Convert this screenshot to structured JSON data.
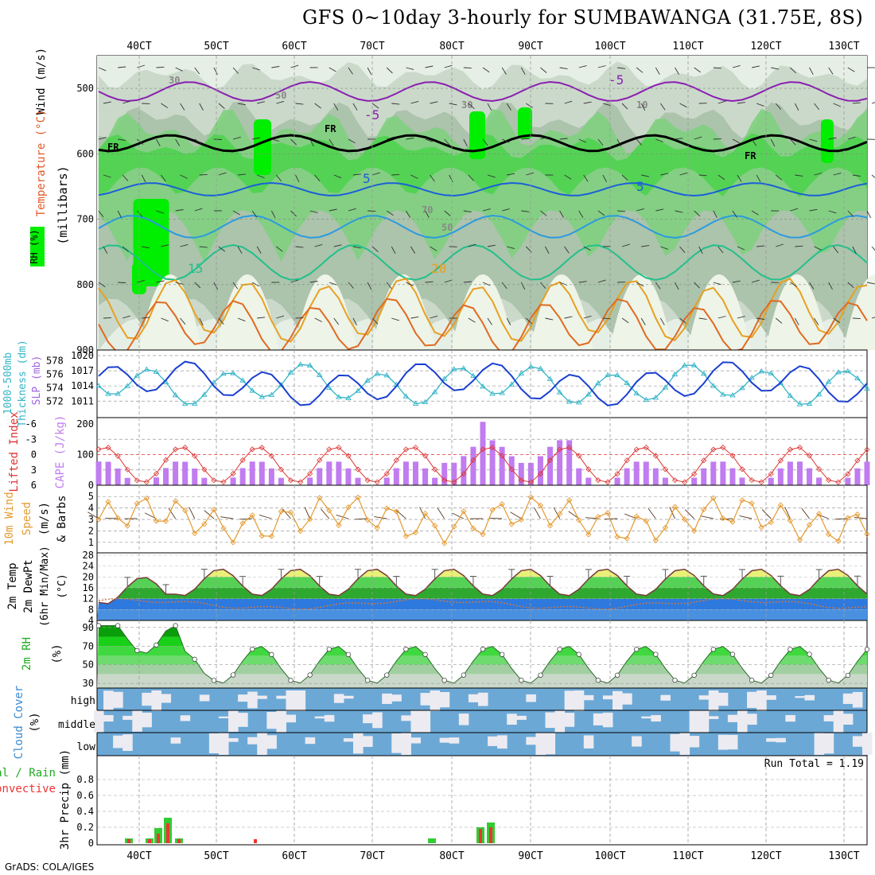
{
  "title": "GFS 0~10day 3-hourly for SUMBAWANGA (31.75E, 8S)",
  "footer": "GrADS: COLA/IGES",
  "x_axis": {
    "ticks": [
      "40CT",
      "50CT",
      "60CT",
      "70CT",
      "80CT",
      "90CT",
      "100CT",
      "110CT",
      "120CT",
      "130CT"
    ],
    "tick_pos": [
      175,
      272,
      370,
      468,
      568,
      667,
      767,
      865,
      963,
      1061
    ]
  },
  "panels": {
    "upper": {
      "ylabel_lines": [
        "Wind (m/s)",
        "Temperature (°C)",
        "(millibars)",
        "RH (%)"
      ],
      "y_ticks": [
        500,
        600,
        700,
        800,
        900
      ],
      "contour_labels": [
        "-5",
        "-5",
        "5",
        "5",
        "15",
        "20",
        "FR",
        "FR",
        "FR",
        "30",
        "50",
        "70",
        "30",
        "50",
        "10"
      ]
    },
    "slp": {
      "ylabel_lines": [
        "1000-500mb",
        "Thickness (dm)",
        "SLP (mb)"
      ],
      "thickness_ticks": [
        578,
        576,
        574,
        572
      ],
      "slp_ticks": [
        1020,
        1017,
        1014,
        1011
      ]
    },
    "cape": {
      "ylabel_lines": [
        "Lifted Index",
        "CAPE (J/kg)"
      ],
      "li_ticks": [
        -6,
        -3,
        0,
        3,
        6
      ],
      "cape_ticks": [
        200,
        100,
        0
      ]
    },
    "wind10": {
      "ylabel_lines": [
        "10m Wind",
        "Speed",
        "(m/s)",
        "& Barbs"
      ],
      "y_ticks": [
        5,
        4,
        3,
        2,
        1
      ]
    },
    "temp2m": {
      "ylabel_lines": [
        "2m Temp",
        "2m DewPt",
        "(6hr Min/Max)",
        "(°C)"
      ],
      "y_ticks": [
        28,
        24,
        20,
        16,
        12,
        8,
        4
      ]
    },
    "rh2m": {
      "ylabel_lines": [
        "2m RH",
        "(%)"
      ],
      "y_ticks": [
        90,
        70,
        50,
        30
      ]
    },
    "cloud": {
      "ylabel_lines": [
        "Cloud Cover",
        "(%)"
      ],
      "levels": [
        "high",
        "middle",
        "low"
      ]
    },
    "precip": {
      "ylabel_lines": [
        "Total / Rain",
        "Convective",
        "3hr Precip (mm)"
      ],
      "y_ticks": [
        0,
        0.2,
        0.4,
        0.6,
        0.8
      ],
      "run_total": "Run Total = 1.19"
    }
  },
  "colors": {
    "rh_green": "#66cc66",
    "bright_green": "#00ee00",
    "temp_orange": "#e89a2a",
    "slp_blue": "#1a3fd0",
    "thickness_cyan": "#33b5c8",
    "cape_purple": "#c07cf0",
    "li_red": "#dd3333",
    "wind_orange": "#e49a30",
    "cloud_blue": "#6ba8d6",
    "precip_green": "#33cc33",
    "precip_red": "#ee3333"
  },
  "chart_data": [
    {
      "type": "area",
      "name_hint": "upper-air cross section",
      "x": [
        "40CT",
        "50CT",
        "60CT",
        "70CT",
        "80CT",
        "90CT",
        "100CT",
        "110CT",
        "120CT",
        "130CT"
      ],
      "y_ticks": [
        500,
        600,
        700,
        800,
        900
      ],
      "freezing_level_mb": 595,
      "isotherm_labels": [
        "-5",
        "5",
        "15",
        "20"
      ]
    },
    {
      "type": "line",
      "x": [
        "40CT",
        "50CT",
        "60CT",
        "70CT",
        "80CT",
        "90CT",
        "100CT",
        "110CT",
        "120CT",
        "130CT"
      ],
      "series": [
        {
          "values": [
            1015,
            1017,
            1018,
            1014,
            1013,
            1017,
            1011,
            1017,
            1011,
            1016
          ]
        },
        {
          "values": [
            572,
            573,
            572,
            575,
            577,
            576,
            575,
            577,
            574,
            576
          ]
        }
      ]
    },
    {
      "type": "bar",
      "x": [
        "40CT",
        "50CT",
        "60CT",
        "70CT",
        "80CT",
        "90CT",
        "100CT",
        "110CT",
        "120CT",
        "130CT"
      ],
      "series": [
        {
          "values": [
            40,
            90,
            15,
            20,
            145,
            60,
            40,
            70,
            50,
            40
          ]
        },
        {
          "values": [
            3,
            4,
            2,
            5,
            -1,
            0,
            3,
            1,
            3,
            0
          ]
        }
      ]
    },
    {
      "type": "line",
      "x": [
        "40CT",
        "50CT",
        "60CT",
        "70CT",
        "80CT",
        "90CT",
        "100CT",
        "110CT",
        "120CT",
        "130CT"
      ],
      "values": [
        3.8,
        2.2,
        3.5,
        2.8,
        2.3,
        3.6,
        2.9,
        4.5,
        3.8,
        3.9
      ]
    },
    {
      "type": "line",
      "x": [
        "40CT",
        "50CT",
        "60CT",
        "70CT",
        "80CT",
        "90CT",
        "100CT",
        "110CT",
        "120CT",
        "130CT"
      ],
      "series": [
        {
          "values": [
            15,
            14,
            23,
            25,
            25,
            25,
            27,
            25,
            26,
            20
          ]
        },
        {
          "values": [
            11,
            12,
            10,
            11,
            11,
            11,
            10,
            8,
            10,
            8
          ]
        }
      ]
    },
    {
      "type": "area",
      "x": [
        "40CT",
        "50CT",
        "60CT",
        "70CT",
        "80CT",
        "90CT",
        "100CT",
        "110CT",
        "120CT",
        "130CT"
      ],
      "values": [
        88,
        66,
        40,
        32,
        65,
        52,
        79,
        55,
        64,
        48
      ]
    },
    {
      "type": "heatmap",
      "x": [
        "40CT",
        "50CT",
        "60CT",
        "70CT",
        "80CT",
        "90CT",
        "100CT",
        "110CT",
        "120CT",
        "130CT"
      ],
      "rows": [
        "high",
        "middle",
        "low"
      ]
    },
    {
      "type": "bar",
      "x": [
        "39CT",
        "41CT",
        "42CT",
        "43CT",
        "44CT",
        "55CT",
        "77CT",
        "83CT",
        "84CT"
      ],
      "series": [
        {
          "values": [
            0.06,
            0.06,
            0.19,
            0.32,
            0.06,
            0.0,
            0.06,
            0.2,
            0.26
          ]
        },
        {
          "values": [
            0.05,
            0.05,
            0.12,
            0.25,
            0.05,
            0.05,
            0.0,
            0.18,
            0.2
          ]
        }
      ],
      "ylim": [
        0,
        1
      ]
    }
  ]
}
